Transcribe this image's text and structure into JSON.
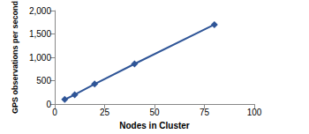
{
  "chart_data": {
    "type": "line",
    "x_label": "Nodes in Cluster",
    "y_label": "GPS observations per second",
    "x": [
      5,
      10,
      20,
      40,
      80
    ],
    "values": [
      100,
      200,
      430,
      860,
      1700
    ],
    "color": "#2f5597",
    "marker": "diamond",
    "xlim": [
      0,
      100
    ],
    "xticks": [
      0,
      25,
      50,
      75,
      100
    ],
    "ylim": [
      0,
      2000
    ],
    "yticks": [
      0,
      500,
      1000,
      1500,
      2000
    ],
    "grid": false
  }
}
